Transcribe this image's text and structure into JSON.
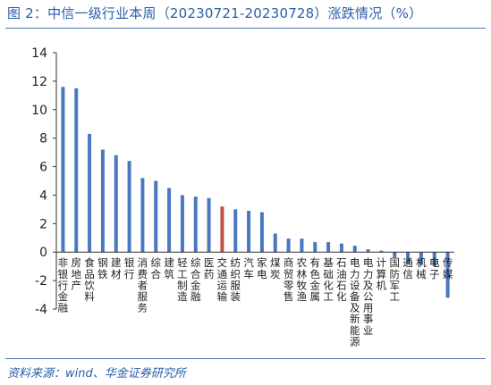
{
  "title": "图 2：中信一级行业本周（20230721-20230728）涨跌情况（%）",
  "source": "资料来源：wind、华金证券研究所",
  "colors": {
    "bar": "#4a78c0",
    "highlight": "#c0504d",
    "accent": "#2a5ea8"
  },
  "chart_data": {
    "type": "bar",
    "title": "",
    "xlabel": "",
    "ylabel": "",
    "ylim": [
      -4,
      14
    ],
    "yticks": [
      -4,
      -2,
      0,
      2,
      4,
      6,
      8,
      10,
      12,
      14
    ],
    "grid": false,
    "categories": [
      "非银行金融",
      "房地产",
      "食品饮料",
      "钢铁",
      "建材",
      "银行",
      "消费者服务",
      "综合",
      "建筑",
      "轻工制造",
      "综合金融",
      "医药",
      "交通运输",
      "纺织服装",
      "汽车",
      "家电",
      "煤炭",
      "商贸零售",
      "农林牧渔",
      "有色金属",
      "基础化工",
      "石油石化",
      "电力设备及新能源",
      "电力及公用事业",
      "计算机",
      "国防军工",
      "通信",
      "机械",
      "电子",
      "传媒"
    ],
    "values": [
      11.6,
      11.5,
      8.3,
      7.2,
      6.8,
      6.4,
      5.2,
      5.0,
      4.5,
      4.0,
      3.9,
      3.8,
      3.2,
      3.0,
      2.9,
      2.8,
      1.3,
      0.95,
      0.95,
      0.7,
      0.7,
      0.6,
      0.45,
      0.2,
      0.1,
      -0.4,
      -0.8,
      -0.9,
      -1.0,
      -3.2
    ],
    "highlight_category": "交通运输"
  }
}
